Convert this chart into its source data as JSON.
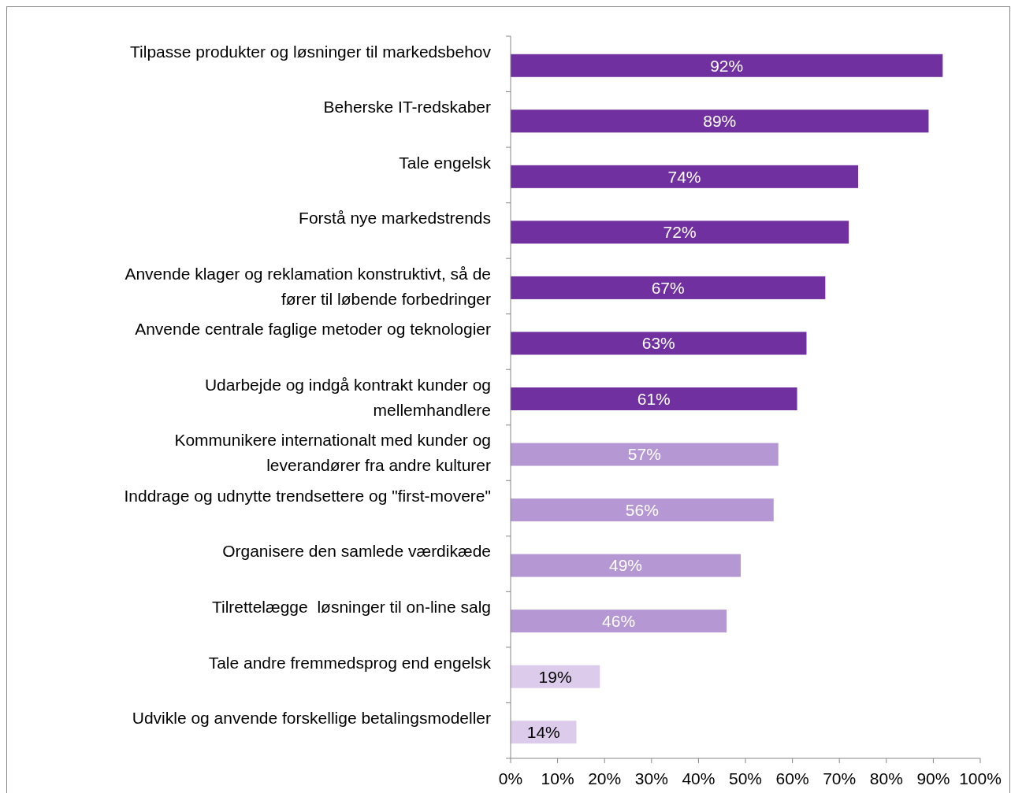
{
  "chart_data": {
    "type": "bar",
    "orientation": "horizontal",
    "categories": [
      "Tilpasse produkter og løsninger til markedsbehov",
      "Beherske IT-redskaber",
      "Tale engelsk",
      "Forstå nye markedstrends",
      "Anvende klager og reklamation konstruktivt, så de fører til løbende forbedringer",
      "Anvende centrale faglige metoder og teknologier",
      "Udarbejde og indgå kontrakt kunder og mellemhandlere",
      "Kommunikere internationalt med kunder og leverandører fra andre kulturer",
      "Inddrage og udnytte trendsettere og \"first-movere\"",
      "Organisere den samlede værdikæde",
      "Tilrettelægge  løsninger til on-line salg",
      "Tale andre fremmedsprog end engelsk",
      "Udvikle og anvende forskellige betalingsmodeller"
    ],
    "values": [
      92,
      89,
      74,
      72,
      67,
      63,
      61,
      57,
      56,
      49,
      46,
      19,
      14
    ],
    "value_labels": [
      "92%",
      "89%",
      "74%",
      "72%",
      "67%",
      "63%",
      "61%",
      "57%",
      "56%",
      "49%",
      "46%",
      "19%",
      "14%"
    ],
    "colors": [
      "#7030a0",
      "#7030a0",
      "#7030a0",
      "#7030a0",
      "#7030a0",
      "#7030a0",
      "#7030a0",
      "#b598d3",
      "#b598d3",
      "#b598d3",
      "#b598d3",
      "#dccbea",
      "#dccbea"
    ],
    "xlim": [
      0,
      100
    ],
    "xticks": [
      {
        "value": 0,
        "label": "0%"
      },
      {
        "value": 10,
        "label": "10%"
      },
      {
        "value": 20,
        "label": "20%"
      },
      {
        "value": 30,
        "label": "30%"
      },
      {
        "value": 40,
        "label": "40%"
      },
      {
        "value": 50,
        "label": "50%"
      },
      {
        "value": 60,
        "label": "60%"
      },
      {
        "value": 70,
        "label": "70%"
      },
      {
        "value": 80,
        "label": "80%"
      },
      {
        "value": 90,
        "label": "90%"
      },
      {
        "value": 100,
        "label": "100%"
      }
    ],
    "grid": false
  }
}
